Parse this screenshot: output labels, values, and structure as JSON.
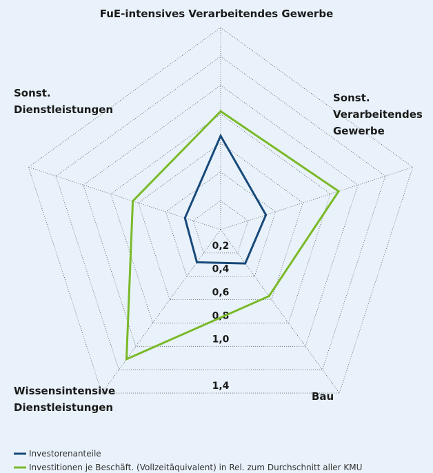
{
  "chart_data": {
    "type": "radar",
    "categories": [
      "FuE-intensives Verarbeitendes Gewerbe",
      "Sonst.\nVerarbeitendes\nGewerbe",
      "Bau",
      "Wissensintensive\nDienstleistungen",
      "Sonst.\nDienstleistungen"
    ],
    "series": [
      {
        "name": "Investorenanteile",
        "color": "#17497a",
        "values": [
          0.65,
          0.33,
          0.29,
          0.28,
          0.26
        ]
      },
      {
        "name": "Investitionen je Beschäft. (Vollzeitäquivalent) in Rel. zum Durchschnitt aller KMU",
        "color": "#7ab929",
        "values": [
          0.82,
          0.86,
          0.57,
          1.11,
          0.64
        ]
      }
    ],
    "rlim": [
      0,
      1.4
    ],
    "rticks": [
      {
        "value": 0.2,
        "label": "0,2"
      },
      {
        "value": 0.4,
        "label": "0,4"
      },
      {
        "value": 0.6,
        "label": "0,6"
      },
      {
        "value": 0.8,
        "label": "0,8"
      },
      {
        "value": 1.0,
        "label": "1,0"
      },
      {
        "value": 1.2,
        "label": null
      },
      {
        "value": 1.4,
        "label": "1,4"
      }
    ]
  }
}
